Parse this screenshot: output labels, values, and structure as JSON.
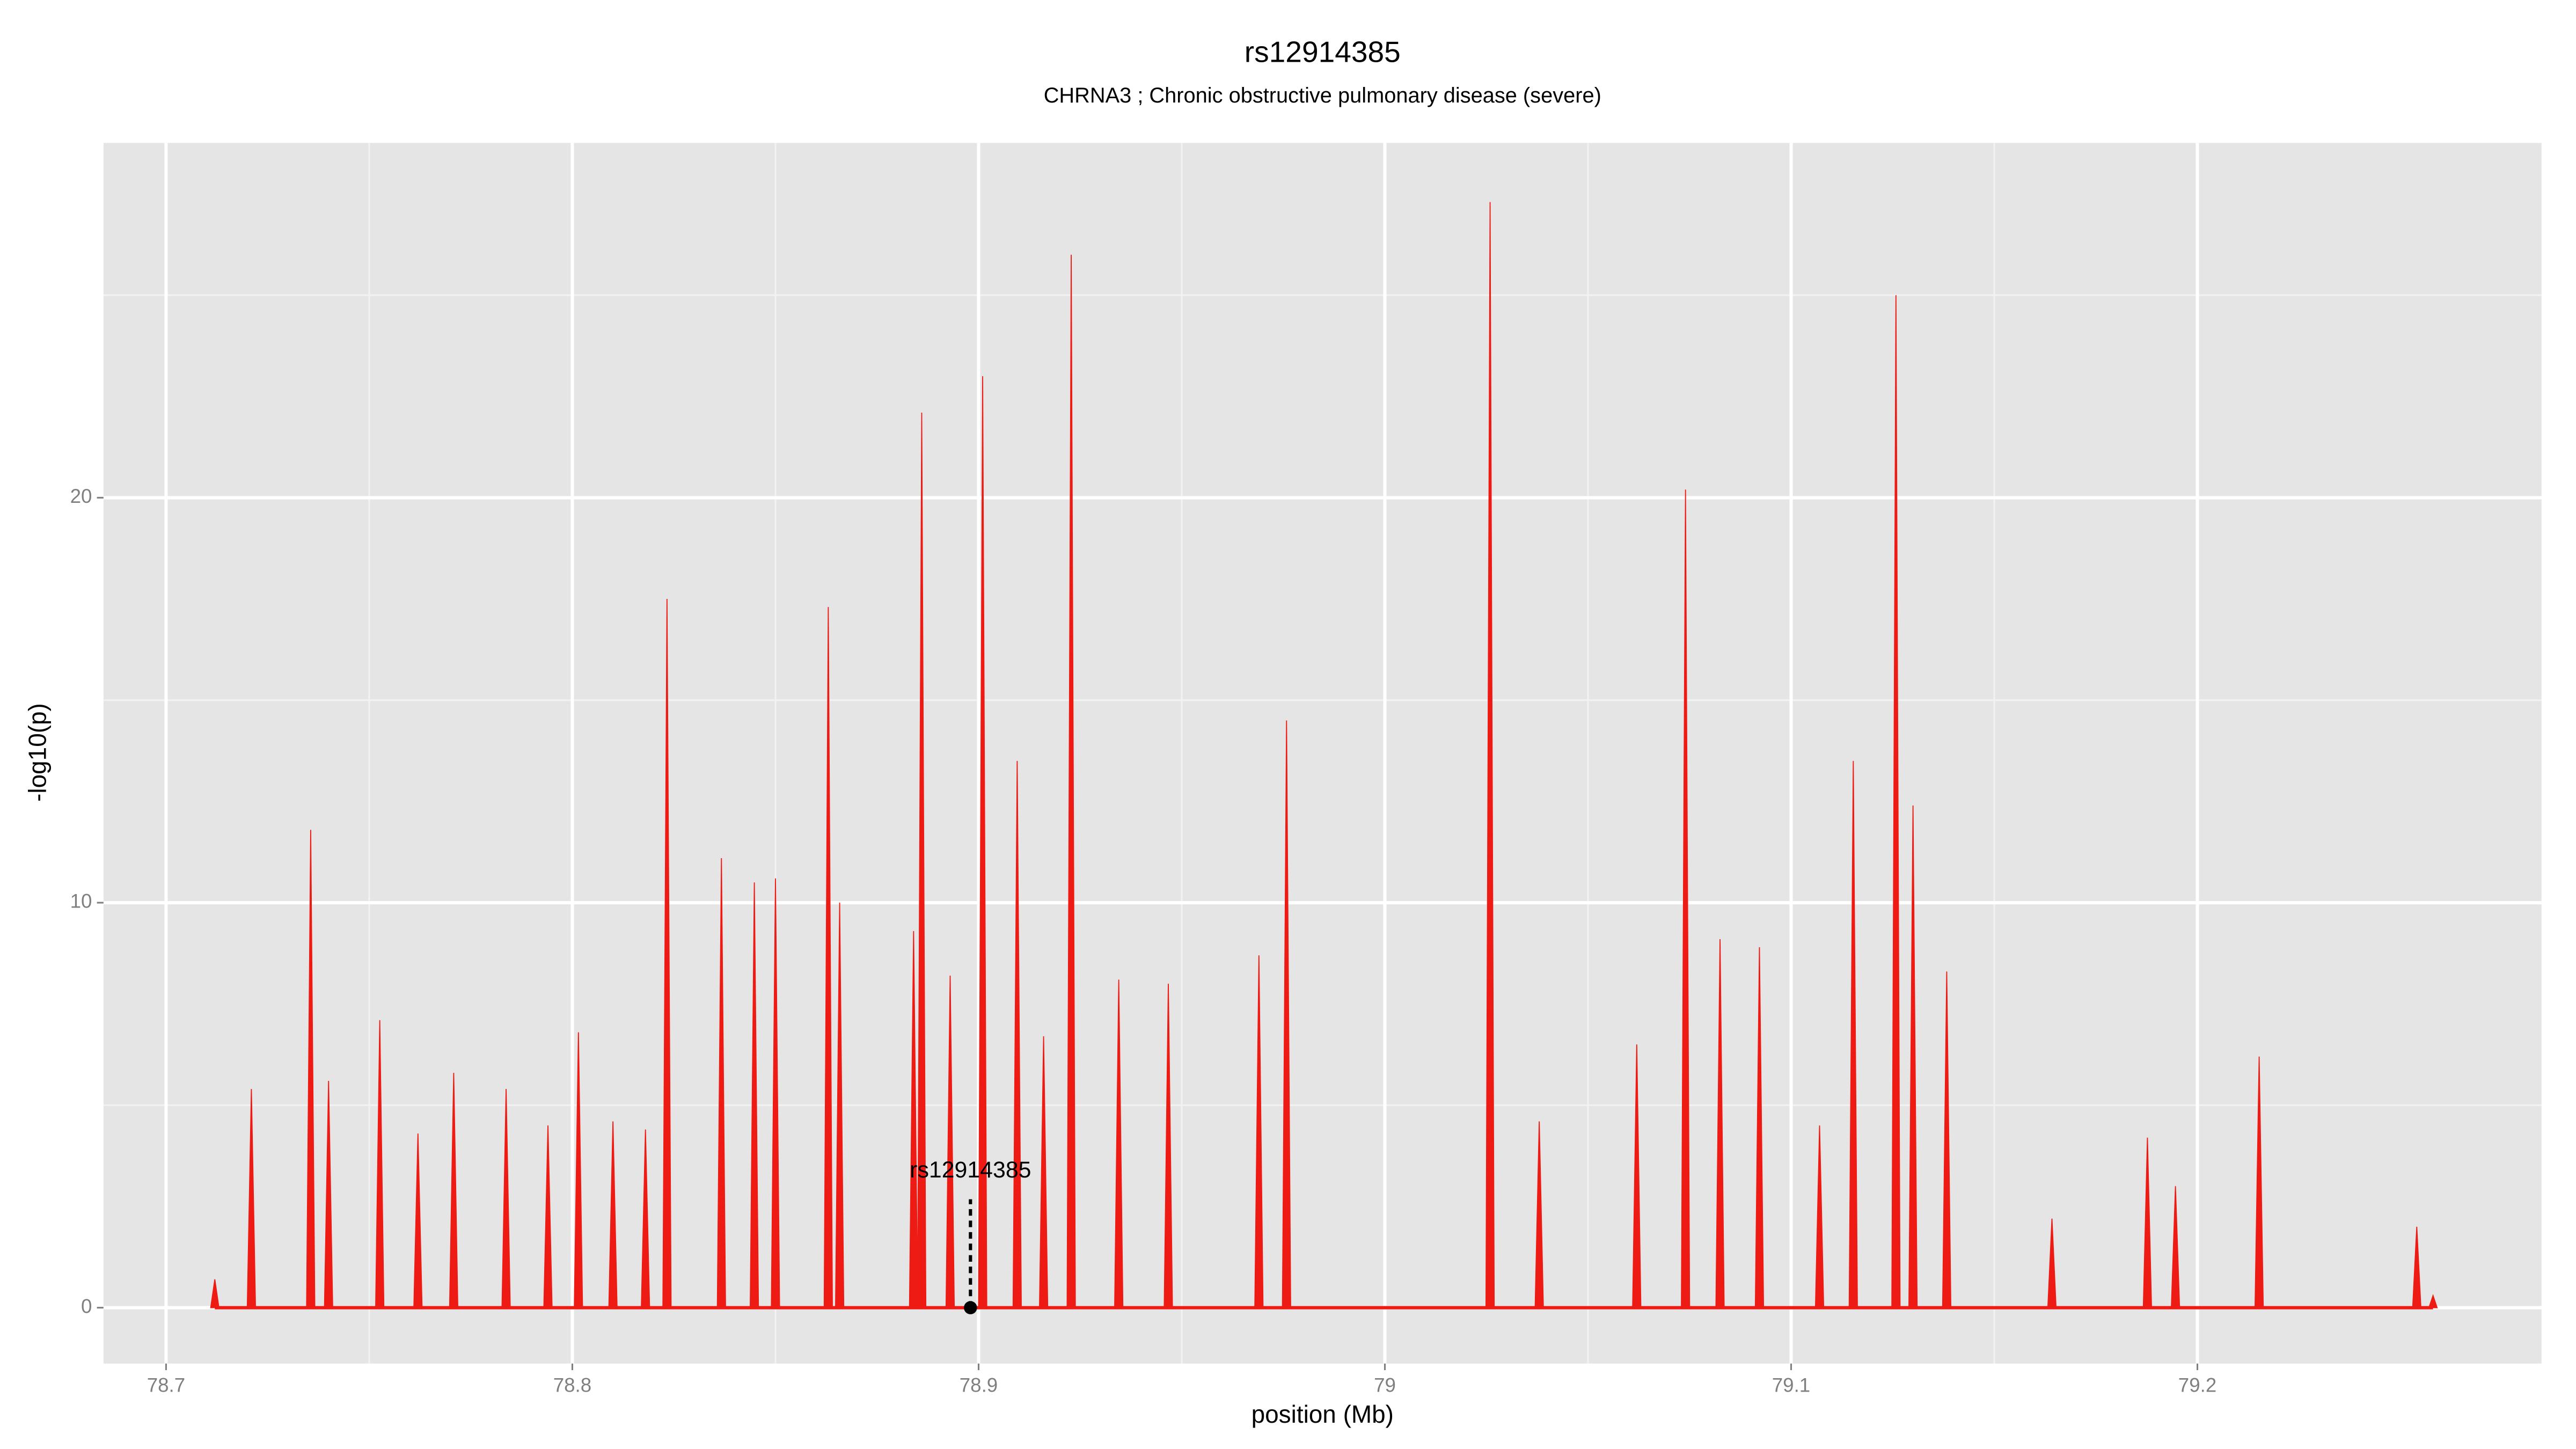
{
  "chart_data": {
    "type": "spike",
    "title": "rs12914385",
    "subtitle": "CHRNA3 ; Chronic obstructive pulmonary disease (severe)",
    "x_label": "position (Mb)",
    "y_label": "-log10(p)",
    "color": "#ee1a14",
    "grid": true,
    "xlim": [
      78.6846,
      79.2847
    ],
    "ylim": [
      -1.38,
      28.76
    ],
    "xticks": [
      78.7,
      78.8,
      78.9,
      79.0,
      79.1,
      79.2
    ],
    "yticks": [
      0,
      10,
      20
    ],
    "x": [
      78.712,
      78.721,
      78.7356,
      78.74,
      78.7526,
      78.762,
      78.7708,
      78.7837,
      78.794,
      78.8015,
      78.81,
      78.818,
      78.8233,
      78.8367,
      78.8448,
      78.85,
      78.863,
      78.8658,
      78.884,
      78.886,
      78.893,
      78.901,
      78.9095,
      78.916,
      78.9228,
      78.9345,
      78.9467,
      78.969,
      78.9758,
      79.0259,
      79.038,
      79.062,
      79.074,
      79.0825,
      79.0922,
      79.107,
      79.1153,
      79.1258,
      79.13,
      79.1383,
      79.1642,
      79.1877,
      79.1946,
      79.2152,
      79.254,
      79.258
    ],
    "values": [
      0.7,
      5.4,
      11.8,
      5.6,
      7.1,
      4.3,
      5.8,
      5.4,
      4.5,
      6.8,
      4.6,
      4.4,
      17.5,
      11.1,
      10.5,
      10.6,
      17.3,
      10,
      9.3,
      22.1,
      8.2,
      23,
      13.5,
      6.7,
      26,
      8.1,
      8,
      8.7,
      14.5,
      27.3,
      4.6,
      6.5,
      20.2,
      9.1,
      8.9,
      4.5,
      13.5,
      25,
      12.4,
      8.3,
      2.2,
      4.2,
      3,
      6.2,
      2,
      0.3
    ],
    "annotation": {
      "text": "rs12914385",
      "x": 78.898,
      "y": 0
    }
  }
}
